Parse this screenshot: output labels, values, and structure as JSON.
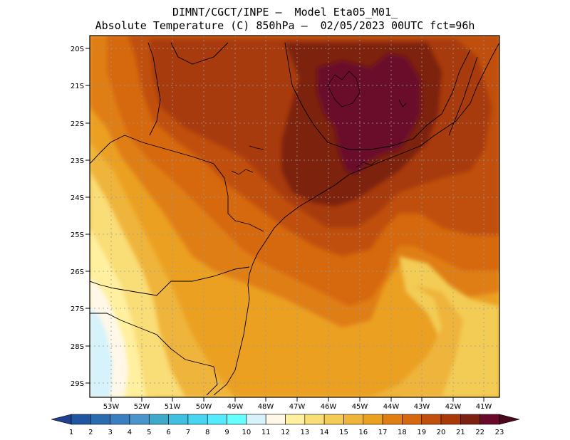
{
  "header": {
    "line1": "DIMNT/CGCT/INPE –  Model Eta05_M01_",
    "line2": "Absolute Temperature (C) 850hPa –  02/05/2023 00UTC fct=96h"
  },
  "map": {
    "lat_labels": [
      "20S",
      "21S",
      "22S",
      "23S",
      "24S",
      "25S",
      "26S",
      "27S",
      "28S",
      "29S"
    ],
    "lon_labels": [
      "53W",
      "52W",
      "51W",
      "50W",
      "49W",
      "48W",
      "47W",
      "46W",
      "45W",
      "44W",
      "43W",
      "42W",
      "41W"
    ]
  },
  "colorbar": {
    "labels": [
      "1",
      "2",
      "3",
      "4",
      "5",
      "6",
      "7",
      "8",
      "9",
      "10",
      "11",
      "12",
      "13",
      "14",
      "15",
      "16",
      "17",
      "18",
      "19",
      "20",
      "21",
      "22",
      "23"
    ],
    "colors": [
      "#1f3f8f",
      "#20559f",
      "#2b6bb0",
      "#3a7fbf",
      "#4a95cc",
      "#3fa9c9",
      "#40c0e0",
      "#48d5f0",
      "#55eaff",
      "#66ffff",
      "#d6f2fa",
      "#fff8e8",
      "#fff0a0",
      "#f9dd76",
      "#f3cc55",
      "#efb43a",
      "#eba020",
      "#e07e12",
      "#d66810",
      "#c0500c",
      "#a83a08",
      "#7d2210",
      "#6a0a2a",
      "#4a0818"
    ]
  }
}
